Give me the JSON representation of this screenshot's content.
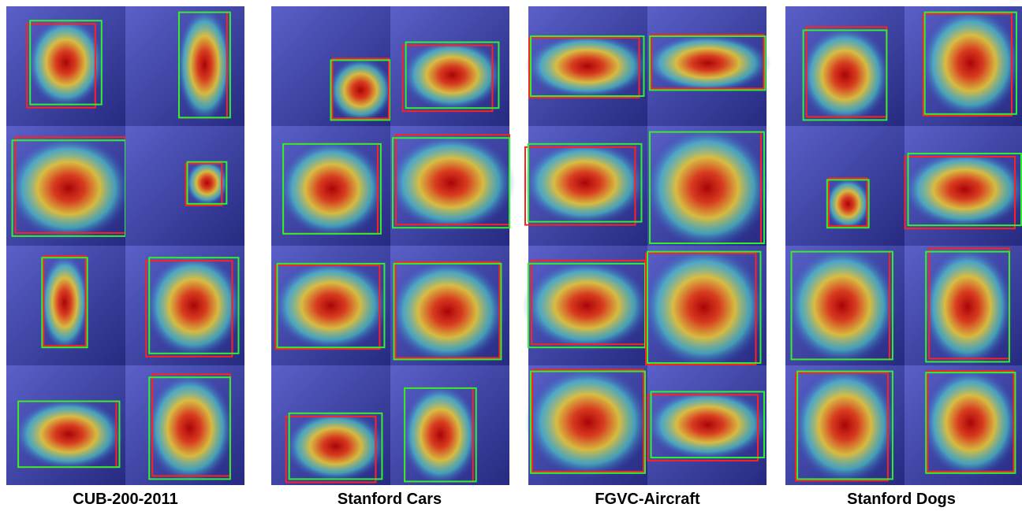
{
  "captions": [
    "CUB-200-2011",
    "Stanford Cars",
    "FGVC-Aircraft",
    "Stanford Dogs"
  ]
}
